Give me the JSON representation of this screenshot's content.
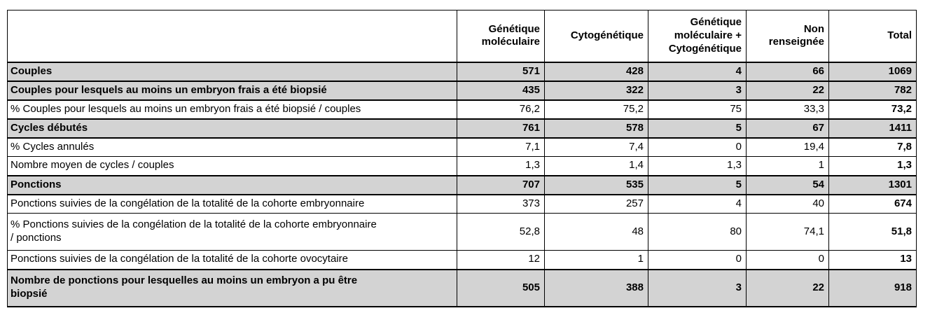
{
  "colors": {
    "section_row_bg": "#d3d3d3",
    "border": "#000000",
    "background": "#ffffff"
  },
  "table": {
    "column_headers": [
      {
        "label": ""
      },
      {
        "label": "Génétique\nmoléculaire"
      },
      {
        "label": "Cytogénétique"
      },
      {
        "label": "Génétique\nmoléculaire +\nCytogénétique"
      },
      {
        "label": "Non\nrenseignée"
      },
      {
        "label": "Total"
      }
    ],
    "rows": [
      {
        "label": "Couples",
        "section_header": true,
        "values": [
          "571",
          "428",
          "4",
          "66",
          "1069"
        ]
      },
      {
        "label": "Couples pour lesquels au moins un embryon frais a été biopsié",
        "section_header": true,
        "values": [
          "435",
          "322",
          "3",
          "22",
          "782"
        ]
      },
      {
        "label": "% Couples pour lesquels au moins un embryon frais a été biopsié / couples",
        "section_header": false,
        "values": [
          "76,2",
          "75,2",
          "75",
          "33,3",
          "73,2"
        ]
      },
      {
        "label": "Cycles débutés",
        "section_header": true,
        "values": [
          "761",
          "578",
          "5",
          "67",
          "1411"
        ]
      },
      {
        "label": "% Cycles annulés",
        "section_header": false,
        "values": [
          "7,1",
          "7,4",
          "0",
          "19,4",
          "7,8"
        ]
      },
      {
        "label": "Nombre moyen de cycles / couples",
        "section_header": false,
        "values": [
          "1,3",
          "1,4",
          "1,3",
          "1",
          "1,3"
        ]
      },
      {
        "label": "Ponctions",
        "section_header": true,
        "values": [
          "707",
          "535",
          "5",
          "54",
          "1301"
        ]
      },
      {
        "label": "Ponctions suivies de la congélation de la totalité de la cohorte embryonnaire",
        "section_header": false,
        "values": [
          "373",
          "257",
          "4",
          "40",
          "674"
        ]
      },
      {
        "label": "% Ponctions suivies de la congélation de la totalité de la cohorte embryonnaire\n/ ponctions",
        "section_header": false,
        "values": [
          "52,8",
          "48",
          "80",
          "74,1",
          "51,8"
        ]
      },
      {
        "label": "Ponctions suivies de la congélation de la totalité de la cohorte ovocytaire",
        "section_header": false,
        "values": [
          "12",
          "1",
          "0",
          "0",
          "13"
        ]
      },
      {
        "label": "Nombre de ponctions pour lesquelles au moins un embryon a pu être\nbiopsié",
        "section_header": true,
        "values": [
          "505",
          "388",
          "3",
          "22",
          "918"
        ]
      }
    ]
  }
}
